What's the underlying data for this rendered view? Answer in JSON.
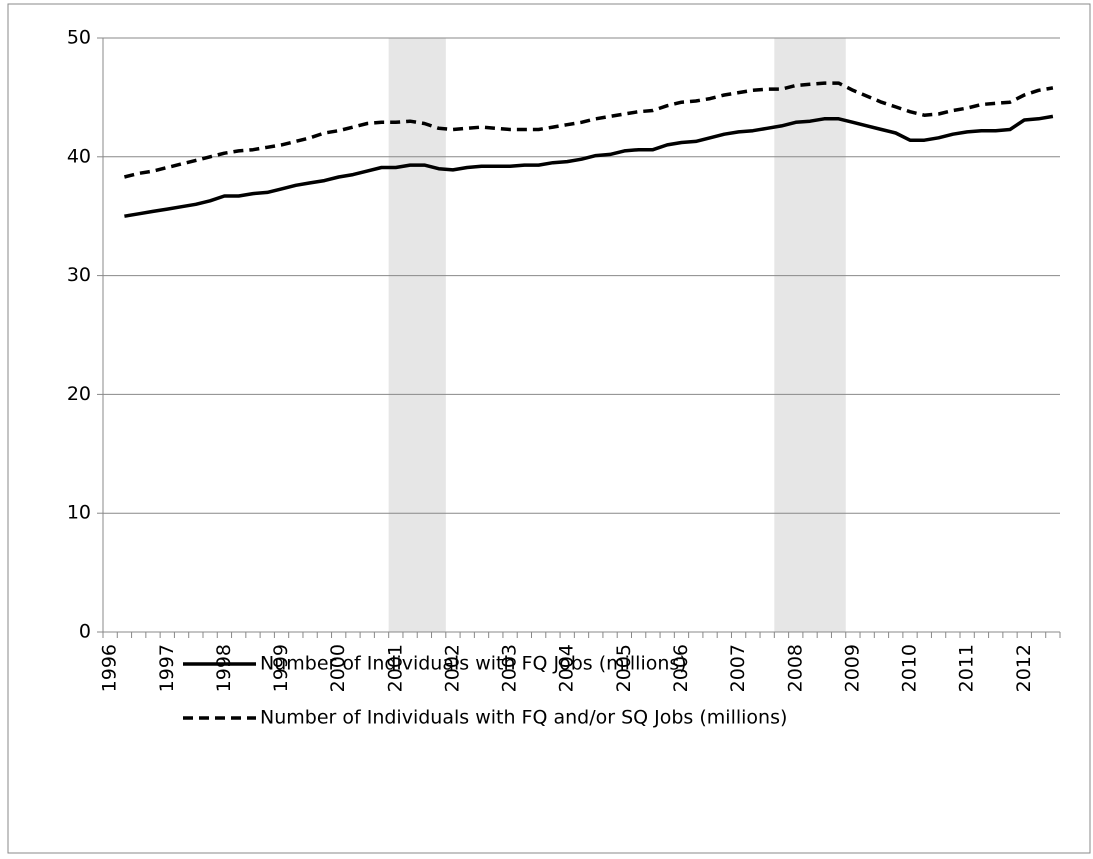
{
  "chart_data": {
    "type": "line",
    "categories": [
      "1996",
      null,
      null,
      null,
      "1997",
      null,
      null,
      null,
      "1998",
      null,
      null,
      null,
      "1999",
      null,
      null,
      null,
      "2000",
      null,
      null,
      null,
      "2001",
      null,
      null,
      null,
      "2002",
      null,
      null,
      null,
      "2003",
      null,
      null,
      null,
      "2004",
      null,
      null,
      null,
      "2005",
      null,
      null,
      null,
      "2006",
      null,
      null,
      null,
      "2007",
      null,
      null,
      null,
      "2008",
      null,
      null,
      null,
      "2009",
      null,
      null,
      null,
      "2010",
      null,
      null,
      null,
      "2011",
      null,
      null,
      null,
      "2012",
      null,
      null
    ],
    "series": [
      {
        "name": "Number of Individuals with FQ Jobs (millions)",
        "color": "#000000",
        "dash": false,
        "values": [
          null,
          35.0,
          35.2,
          35.4,
          35.6,
          35.8,
          36.0,
          36.3,
          36.7,
          36.7,
          36.9,
          37.0,
          37.3,
          37.6,
          37.8,
          38.0,
          38.3,
          38.5,
          38.8,
          39.1,
          39.1,
          39.3,
          39.3,
          39.0,
          38.9,
          39.1,
          39.2,
          39.2,
          39.2,
          39.3,
          39.3,
          39.5,
          39.6,
          39.8,
          40.1,
          40.2,
          40.5,
          40.6,
          40.6,
          41.0,
          41.2,
          41.3,
          41.6,
          41.9,
          42.1,
          42.2,
          42.4,
          42.6,
          42.9,
          43.0,
          43.2,
          43.2,
          42.9,
          42.6,
          42.3,
          42.0,
          41.4,
          41.4,
          41.6,
          41.9,
          42.1,
          42.2,
          42.2,
          42.3,
          43.1,
          43.2,
          43.4
        ]
      },
      {
        "name": "Number of Individuals with FQ and/or SQ Jobs (millions)",
        "color": "#000000",
        "dash": true,
        "values": [
          null,
          38.3,
          38.6,
          38.8,
          39.1,
          39.4,
          39.7,
          40.0,
          40.3,
          40.5,
          40.6,
          40.8,
          41.0,
          41.3,
          41.6,
          42.0,
          42.2,
          42.5,
          42.8,
          42.9,
          42.9,
          43.0,
          42.8,
          42.4,
          42.3,
          42.4,
          42.5,
          42.4,
          42.3,
          42.3,
          42.3,
          42.5,
          42.7,
          42.9,
          43.2,
          43.4,
          43.6,
          43.8,
          43.9,
          44.3,
          44.6,
          44.7,
          44.9,
          45.2,
          45.4,
          45.6,
          45.7,
          45.7,
          46.0,
          46.1,
          46.2,
          46.2,
          45.6,
          45.1,
          44.6,
          44.2,
          43.8,
          43.5,
          43.6,
          43.9,
          44.1,
          44.4,
          44.5,
          44.6,
          45.2,
          45.6,
          45.8
        ]
      }
    ],
    "shaded": [
      {
        "from": 20,
        "to": 23
      },
      {
        "from": 47,
        "to": 51
      }
    ],
    "shade_color": "#e6e6e6",
    "ylim": [
      0,
      50
    ],
    "yticks": [
      0,
      10,
      20,
      30,
      40,
      50
    ],
    "grid": true
  }
}
